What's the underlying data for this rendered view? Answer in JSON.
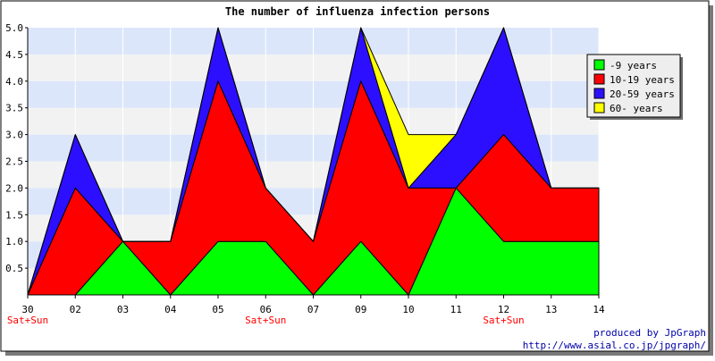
{
  "chart_data": {
    "type": "area",
    "stacked": true,
    "title": "The number of influenza infection persons",
    "categories": [
      "30",
      "02",
      "03",
      "04",
      "05",
      "06",
      "07",
      "09",
      "10",
      "11",
      "12",
      "13",
      "14"
    ],
    "weekend_labels": [
      "Sat+Sun",
      "",
      "",
      "",
      "",
      "Sat+Sun",
      "",
      "",
      "",
      "",
      "Sat+Sun",
      "",
      ""
    ],
    "weekend_color": "#ff0000",
    "ylim": [
      0,
      5
    ],
    "yticks": [
      "0.5",
      "1.0",
      "1.5",
      "2.0",
      "2.5",
      "3.0",
      "3.5",
      "4.0",
      "4.5",
      "5.0"
    ],
    "grid_band_colors": [
      "#f2f2f2",
      "#dce6fa"
    ],
    "legend_position": "top-right",
    "series": [
      {
        "name": "-9 years",
        "color": "#00ff00",
        "values": [
          0,
          0,
          1,
          0,
          1,
          1,
          0,
          1,
          0,
          2,
          1,
          1,
          1
        ]
      },
      {
        "name": "10-19 years",
        "color": "#ff0000",
        "values": [
          0,
          2,
          0,
          1,
          3,
          1,
          1,
          3,
          2,
          0,
          2,
          1,
          1
        ]
      },
      {
        "name": "20-59 years",
        "color": "#2d0fff",
        "values": [
          0,
          1,
          0,
          0,
          1,
          0,
          0,
          1,
          0,
          1,
          2,
          0,
          0
        ]
      },
      {
        "name": "60- years",
        "color": "#ffff00",
        "values": [
          0,
          0,
          0,
          0,
          0,
          0,
          0,
          0,
          1,
          0,
          0,
          0,
          0
        ]
      }
    ]
  },
  "footer": {
    "line1": "produced by JpGraph",
    "line2": "http://www.asial.co.jp/jpgraph/"
  }
}
